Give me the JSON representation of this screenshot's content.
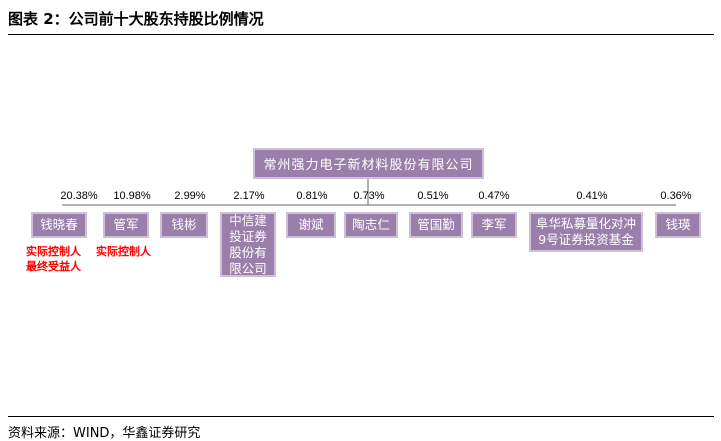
{
  "figure_title": "图表 2：公司前十大股东持股比例情况",
  "company": "常州强力电子新材料股份有限公司",
  "holders": [
    {
      "name": "钱晓春",
      "pct": "20.38%"
    },
    {
      "name": "管军",
      "pct": "10.98%"
    },
    {
      "name": "钱彬",
      "pct": "2.99%"
    },
    {
      "name": "中信建投证券股份有限公司",
      "pct": "2.17%"
    },
    {
      "name": "谢斌",
      "pct": "0.81%"
    },
    {
      "name": "陶志仁",
      "pct": "0.73%"
    },
    {
      "name": "管国勤",
      "pct": "0.51%"
    },
    {
      "name": "李军",
      "pct": "0.47%"
    },
    {
      "name": "阜华私募量化对冲9号证券投资基金",
      "pct": "0.41%"
    },
    {
      "name": "钱瑛",
      "pct": "0.36%"
    }
  ],
  "notes": {
    "holder1_line1": "实际控制人",
    "holder1_line2": "最终受益人",
    "holder2_line1": "实际控制人"
  },
  "source": "资料来源：WIND，华鑫证券研究",
  "colors": {
    "box_fill": "#9b7fab",
    "box_border": "#cdbfd6",
    "note_text": "#ff0000"
  }
}
